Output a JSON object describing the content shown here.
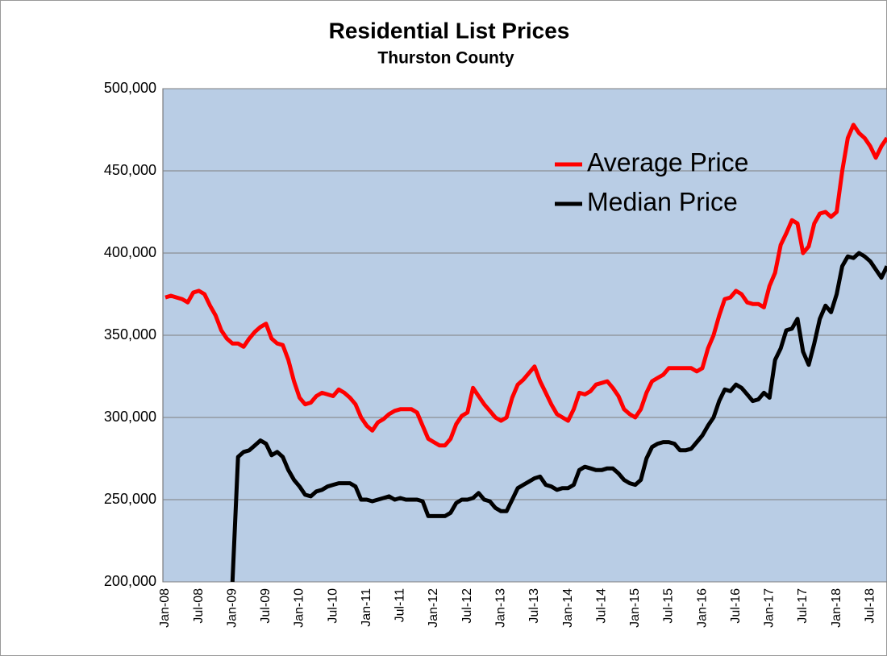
{
  "chart_data": {
    "type": "line",
    "title": "Residential List Prices",
    "subtitle": "Thurston County",
    "categories": [
      "Jan-08",
      null,
      null,
      null,
      null,
      null,
      "Jul-08",
      null,
      null,
      null,
      null,
      null,
      "Jan-09",
      null,
      null,
      null,
      null,
      null,
      "Jul-09",
      null,
      null,
      null,
      null,
      null,
      "Jan-10",
      null,
      null,
      null,
      null,
      null,
      "Jul-10",
      null,
      null,
      null,
      null,
      null,
      "Jan-11",
      null,
      null,
      null,
      null,
      null,
      "Jul-11",
      null,
      null,
      null,
      null,
      null,
      "Jan-12",
      null,
      null,
      null,
      null,
      null,
      "Jul-12",
      null,
      null,
      null,
      null,
      null,
      "Jan-13",
      null,
      null,
      null,
      null,
      null,
      "Jul-13",
      null,
      null,
      null,
      null,
      null,
      "Jan-14",
      null,
      null,
      null,
      null,
      null,
      "Jul-14",
      null,
      null,
      null,
      null,
      null,
      "Jan-15",
      null,
      null,
      null,
      null,
      null,
      "Jul-15",
      null,
      null,
      null,
      null,
      null,
      "Jan-16",
      null,
      null,
      null,
      null,
      null,
      "Jul-16",
      null,
      null,
      null,
      null,
      null,
      "Jan-17",
      null,
      null,
      null,
      null,
      null,
      "Jul-17",
      null,
      null,
      null,
      null,
      null,
      "Jan-18",
      null,
      null,
      null,
      null,
      null,
      "Jul-18",
      null,
      null,
      null
    ],
    "series": [
      {
        "name": "Average Price",
        "color": "#ff0000",
        "values": [
          373000,
          374000,
          373000,
          372000,
          370000,
          376000,
          377000,
          375000,
          368000,
          362000,
          353000,
          348000,
          345000,
          345000,
          343000,
          348000,
          352000,
          355000,
          357000,
          348000,
          345000,
          344000,
          335000,
          322000,
          312000,
          308000,
          309000,
          313000,
          315000,
          314000,
          313000,
          317000,
          315000,
          312000,
          308000,
          300000,
          295000,
          292000,
          297000,
          299000,
          302000,
          304000,
          305000,
          305000,
          305000,
          303000,
          295000,
          287000,
          285000,
          283000,
          283000,
          287000,
          296000,
          301000,
          303000,
          318000,
          313000,
          308000,
          304000,
          300000,
          298000,
          300000,
          312000,
          320000,
          323000,
          327000,
          331000,
          322000,
          315000,
          308000,
          302000,
          300000,
          298000,
          305000,
          315000,
          314000,
          316000,
          320000,
          321000,
          322000,
          318000,
          313000,
          305000,
          302000,
          300000,
          305000,
          315000,
          322000,
          324000,
          326000,
          330000,
          330000,
          330000,
          330000,
          330000,
          328000,
          330000,
          342000,
          350000,
          362000,
          372000,
          373000,
          377000,
          375000,
          370000,
          369000,
          369000,
          367000,
          380000,
          388000,
          405000,
          412000,
          420000,
          418000,
          400000,
          404000,
          418000,
          424000,
          425000,
          422000,
          425000,
          450000,
          470000,
          478000,
          473000,
          470000,
          465000,
          458000,
          465000,
          470000
        ]
      },
      {
        "name": "Median Price",
        "color": "#000000",
        "values": [
          null,
          null,
          null,
          null,
          null,
          null,
          null,
          null,
          null,
          null,
          null,
          null,
          200000,
          276000,
          279000,
          280000,
          283000,
          286000,
          284000,
          277000,
          279000,
          276000,
          268000,
          262000,
          258000,
          253000,
          252000,
          255000,
          256000,
          258000,
          259000,
          260000,
          260000,
          260000,
          258000,
          250000,
          250000,
          249000,
          250000,
          251000,
          252000,
          250000,
          251000,
          250000,
          250000,
          250000,
          249000,
          240000,
          240000,
          240000,
          240000,
          242000,
          248000,
          250000,
          250000,
          251000,
          254000,
          250000,
          249000,
          245000,
          243000,
          243000,
          250000,
          257000,
          259000,
          261000,
          263000,
          264000,
          259000,
          258000,
          256000,
          257000,
          257000,
          259000,
          268000,
          270000,
          269000,
          268000,
          268000,
          269000,
          269000,
          266000,
          262000,
          260000,
          259000,
          262000,
          275000,
          282000,
          284000,
          285000,
          285000,
          284000,
          280000,
          280000,
          281000,
          285000,
          289000,
          295000,
          300000,
          310000,
          317000,
          316000,
          320000,
          318000,
          314000,
          310000,
          311000,
          315000,
          312000,
          335000,
          342000,
          353000,
          354000,
          360000,
          340000,
          332000,
          345000,
          360000,
          368000,
          364000,
          375000,
          392000,
          398000,
          397000,
          400000,
          398000,
          395000,
          390000,
          385000,
          392000
        ]
      }
    ],
    "ylim": [
      200000,
      500000
    ],
    "yticks": [
      {
        "value": 200000,
        "label": "200,000"
      },
      {
        "value": 250000,
        "label": "250,000"
      },
      {
        "value": 300000,
        "label": "300,000"
      },
      {
        "value": 350000,
        "label": "350,000"
      },
      {
        "value": 400000,
        "label": "400,000"
      },
      {
        "value": 450000,
        "label": "450,000"
      },
      {
        "value": 500000,
        "label": "500,000"
      }
    ],
    "grid": true,
    "legend": "upper right"
  }
}
